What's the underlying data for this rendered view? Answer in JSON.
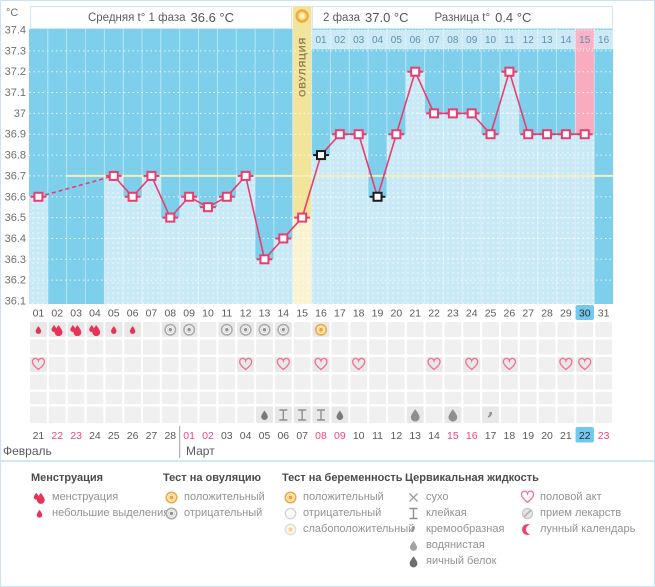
{
  "header": {
    "unit_label": "°C",
    "phase1_label": "Средняя t° 1 фаза",
    "phase1_value": "36.6 °C",
    "phase2_label": "2 фаза",
    "phase2_value": "37.0 °C",
    "diff_label": "Разница t°",
    "diff_value": "0.4 °C",
    "ovulation_label": "ОВУЛЯЦИЯ"
  },
  "chart_data": {
    "type": "line",
    "ylabel": "°C",
    "ylim": [
      36.1,
      37.4
    ],
    "y_ticks": [
      "37.4",
      "37.3",
      "37.2",
      "37.1",
      "37",
      "36.9",
      "36.8",
      "36.7",
      "36.6",
      "36.5",
      "36.4",
      "36.3",
      "36.2",
      "36.1"
    ],
    "coverline": 36.7,
    "x_days": 31,
    "day_labels": [
      "01",
      "02",
      "03",
      "04",
      "05",
      "06",
      "07",
      "08",
      "09",
      "10",
      "11",
      "12",
      "13",
      "14",
      "15",
      "16",
      "17",
      "18",
      "19",
      "20",
      "21",
      "22",
      "23",
      "24",
      "25",
      "26",
      "27",
      "28",
      "29",
      "30",
      "31"
    ],
    "temps": [
      36.6,
      null,
      null,
      null,
      36.7,
      36.6,
      36.7,
      36.5,
      36.6,
      36.55,
      36.6,
      36.7,
      36.3,
      36.4,
      36.5,
      36.8,
      36.9,
      36.9,
      36.6,
      36.9,
      37.2,
      37.0,
      37.0,
      37.0,
      36.9,
      37.2,
      36.9,
      36.9,
      36.9,
      36.9,
      null
    ],
    "deviation_days": [
      16,
      19
    ],
    "ovulation_day": 15,
    "today_day": 30,
    "phase2_day_numbers": [
      "01",
      "02",
      "03",
      "04",
      "05",
      "06",
      "07",
      "08",
      "09",
      "10",
      "11",
      "12",
      "13",
      "14",
      "15",
      "16"
    ],
    "phase2_highlight_number": "15"
  },
  "symbols": {
    "menstruation_heavy_days": [
      2,
      3,
      4
    ],
    "menstruation_light_days": [
      1,
      5,
      6
    ],
    "ovulation_test_negative_days": [
      8,
      9,
      11,
      12,
      13,
      14
    ],
    "ovulation_test_positive_days": [
      16
    ],
    "pregnancy_test_days": [],
    "intercourse_days": [
      1,
      12,
      14,
      16,
      18,
      22,
      24,
      26,
      29,
      30
    ],
    "medication_days": [],
    "cervical_fluid": [
      {
        "day": 13,
        "kind": "яичный белок"
      },
      {
        "day": 14,
        "kind": "клейкая"
      },
      {
        "day": 15,
        "kind": "клейкая"
      },
      {
        "day": 16,
        "kind": "клейкая"
      },
      {
        "day": 17,
        "kind": "яичный белок"
      },
      {
        "day": 21,
        "kind": "водянистая"
      },
      {
        "day": 23,
        "kind": "водянистая"
      },
      {
        "day": 25,
        "kind": "кремообразная"
      }
    ]
  },
  "calendar": {
    "month1": "Февраль",
    "month2": "Март",
    "dates": [
      "21",
      "22",
      "23",
      "24",
      "25",
      "26",
      "27",
      "28",
      "01",
      "02",
      "03",
      "04",
      "05",
      "06",
      "07",
      "08",
      "09",
      "10",
      "11",
      "12",
      "13",
      "14",
      "15",
      "16",
      "17",
      "18",
      "19",
      "20",
      "21",
      "22",
      "23"
    ],
    "red_columns": [
      2,
      3,
      9,
      10,
      16,
      17,
      23,
      24,
      31
    ],
    "today_column": 30,
    "month2_start_column": 9
  },
  "legend": {
    "columns": [
      {
        "title": "Менструация",
        "items": [
          {
            "icon": "menses-heavy",
            "label": "менструация"
          },
          {
            "icon": "menses-light",
            "label": "небольшие выделения"
          }
        ]
      },
      {
        "title": "Тест на овуляцию",
        "items": [
          {
            "icon": "ovu-pos",
            "label": "положительный"
          },
          {
            "icon": "ovu-neg",
            "label": "отрицательный"
          }
        ]
      },
      {
        "title": "Тест на беременность",
        "items": [
          {
            "icon": "ovu-pos",
            "label": "положительный"
          },
          {
            "icon": "preg-neg",
            "label": "отрицательный"
          },
          {
            "icon": "preg-weak",
            "label": "слабоположительный"
          }
        ]
      },
      {
        "title": "Цервикальная жидкость",
        "items": [
          {
            "icon": "dry",
            "label": "сухо"
          },
          {
            "icon": "sticky",
            "label": "клейкая"
          },
          {
            "icon": "creamy",
            "label": "кремообразная"
          },
          {
            "icon": "watery",
            "label": "водянистая"
          },
          {
            "icon": "eggwhite",
            "label": "яичный белок"
          }
        ]
      },
      {
        "title": "",
        "items": [
          {
            "icon": "heart",
            "label": "половой акт"
          },
          {
            "icon": "meds",
            "label": "прием лекарств"
          },
          {
            "icon": "moon",
            "label": "лунный календарь"
          }
        ]
      }
    ]
  },
  "colors": {
    "accent_pink": "#e73e6f",
    "dark_blue": "#7ecfeb",
    "light_bar": "#c9e9f6",
    "ovulation_yellow": "#f3e49c",
    "ovulation_yellow_light": "#faf3d2",
    "today_pink": "#f9abc0",
    "today_blue": "#72c9ed",
    "coverline": "#f5f0b2",
    "red_date": "#f0457c",
    "dpo_cell": "#cbe9f7",
    "dpo_pink": "#f9b3c6"
  }
}
